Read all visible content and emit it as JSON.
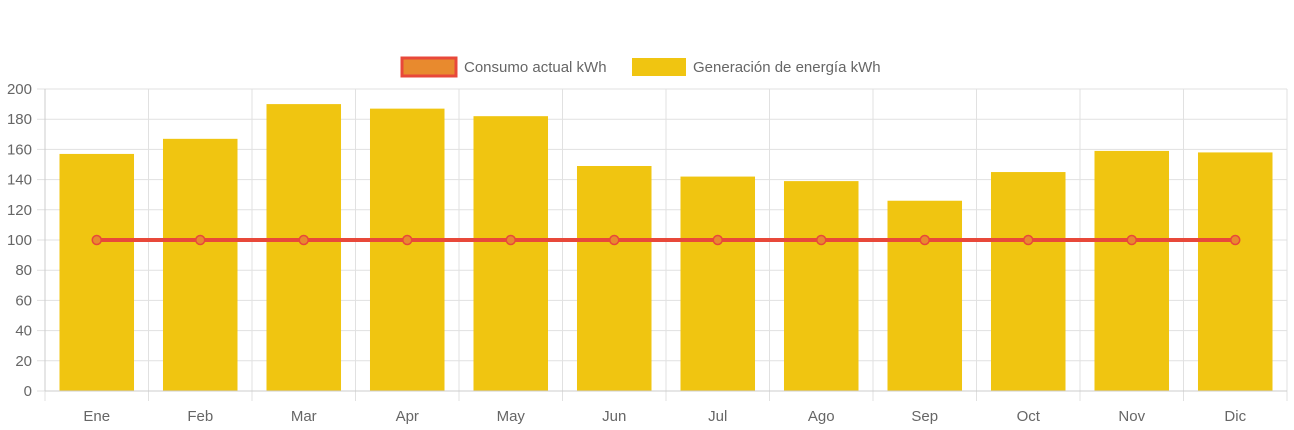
{
  "chart_data": {
    "type": "bar",
    "categories": [
      "Ene",
      "Feb",
      "Mar",
      "Apr",
      "May",
      "Jun",
      "Jul",
      "Ago",
      "Sep",
      "Oct",
      "Nov",
      "Dic"
    ],
    "series": [
      {
        "name": "Consumo actual kWh",
        "type": "line",
        "values": [
          100,
          100,
          100,
          100,
          100,
          100,
          100,
          100,
          100,
          100,
          100,
          100
        ],
        "color": "#e8483a",
        "point_color": "#e88a2e"
      },
      {
        "name": "Generación de energía kWh",
        "type": "bar",
        "values": [
          157,
          167,
          190,
          187,
          182,
          149,
          142,
          139,
          126,
          145,
          159,
          158
        ],
        "color": "#f0c511"
      }
    ],
    "ylim": [
      0,
      200
    ],
    "yticks": [
      0,
      20,
      40,
      60,
      80,
      100,
      120,
      140,
      160,
      180,
      200
    ],
    "grid": true,
    "legend": "top-center",
    "title": "",
    "xlabel": "",
    "ylabel": ""
  }
}
